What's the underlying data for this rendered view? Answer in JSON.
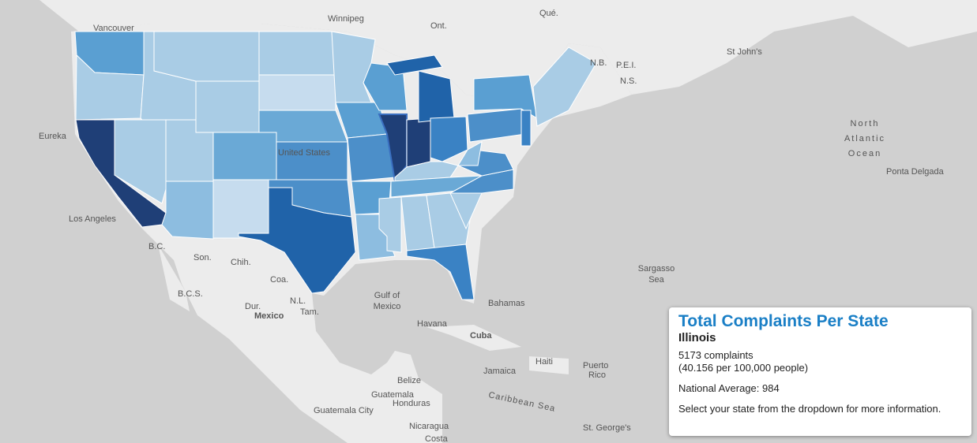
{
  "map_labels": [
    "Vancouver",
    "Winnipeg",
    "Ont.",
    "Qué.",
    "St John's",
    "N.B.",
    "P.E.I.",
    "N.S.",
    "North",
    "Atlantic",
    "Ocean",
    "Ponta Delgada",
    "Eureka",
    "Los Angeles",
    "United States",
    "B.C.",
    "Son.",
    "Chih.",
    "Coa.",
    "B.C.S.",
    "N.L.",
    "Dur.",
    "Tam.",
    "Mexico",
    "Sargasso",
    "Sea",
    "Gulf of",
    "Mexico",
    "Bahamas",
    "Havana",
    "Cuba",
    "Haiti",
    "Jamaica",
    "Puerto",
    "Rico",
    "Belize",
    "Guatemala",
    "Honduras",
    "Caribbean Sea",
    "Guatemala City",
    "Nicaragua",
    "Costa",
    "St. George's"
  ],
  "legend_panel": {
    "title": "Total Complaints Per State",
    "state": "Illinois",
    "complaints": "5173 complaints",
    "per_capita": "(40.156 per 100,000 people)",
    "national_average": "National Average: 984",
    "instruction": "Select your state from the dropdown for more information."
  }
}
